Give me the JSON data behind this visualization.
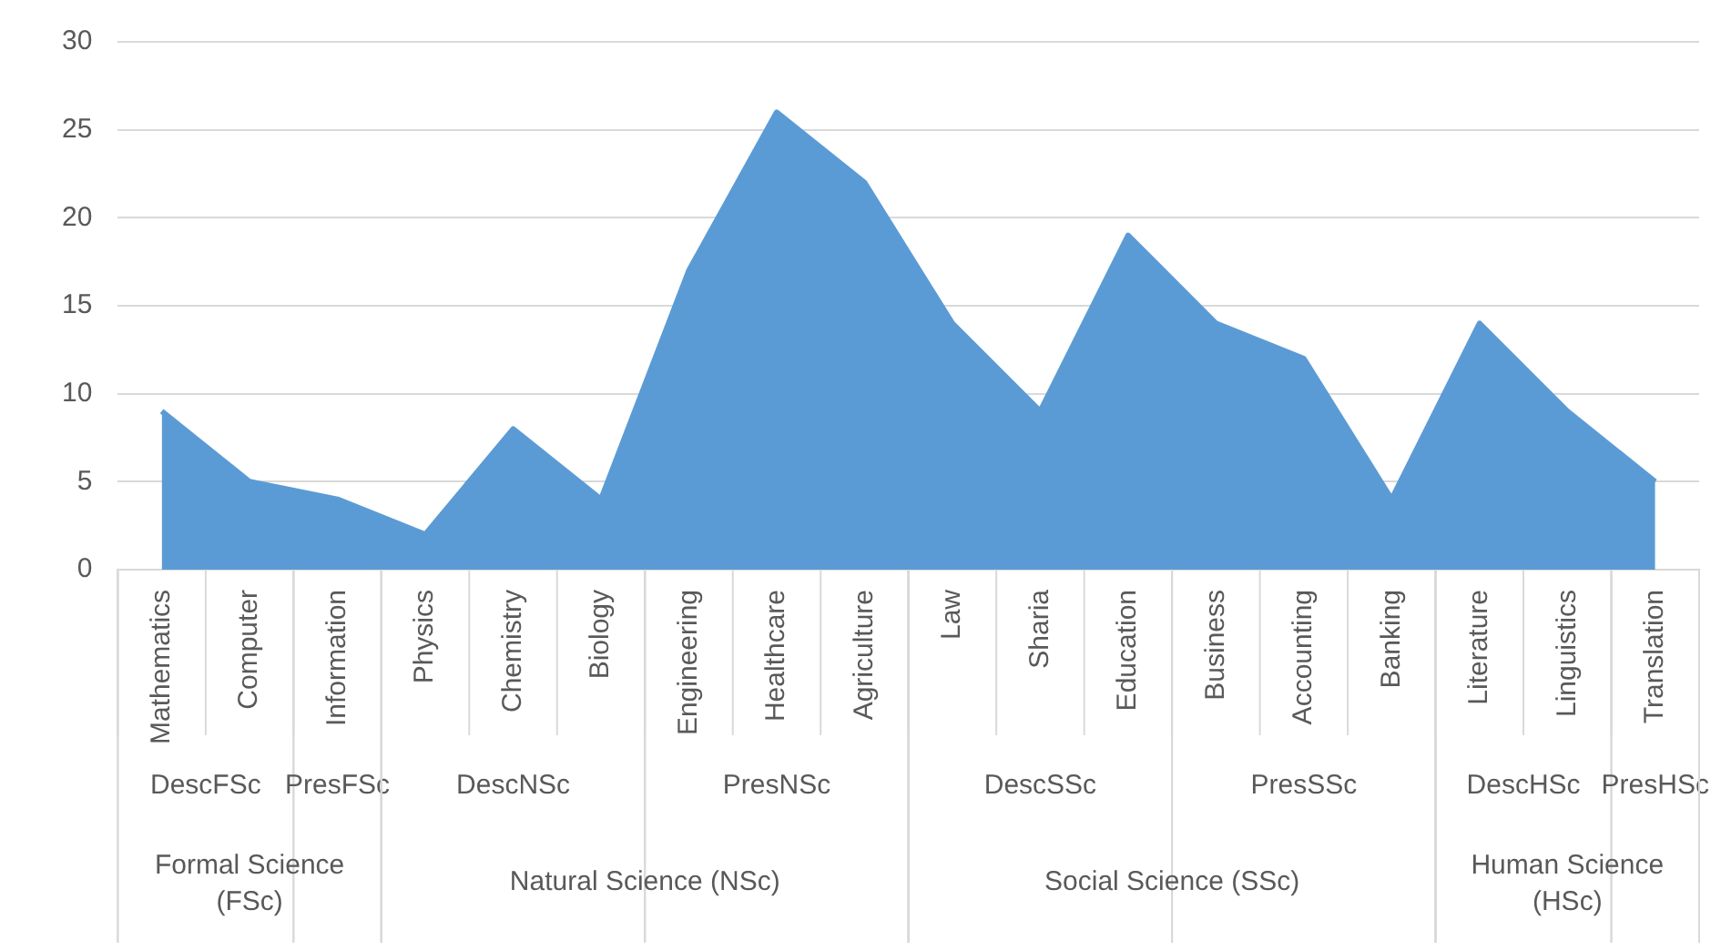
{
  "chart_data": {
    "type": "area",
    "categories": [
      "Mathematics",
      "Computer",
      "Information",
      "Physics",
      "Chemistry",
      "Biology",
      "Engineering",
      "Healthcare",
      "Agriculture",
      "Law",
      "Sharia",
      "Education",
      "Business",
      "Accounting",
      "Banking",
      "Literature",
      "Linguistics",
      "Translation"
    ],
    "series": [
      {
        "color": "#5b9bd5",
        "values": [
          9,
          5,
          4,
          2,
          8,
          4,
          17,
          26,
          22,
          14,
          9,
          19,
          14,
          12,
          4,
          14,
          9,
          5
        ]
      }
    ],
    "ylim": [
      0,
      30
    ],
    "yticks": [
      0,
      5,
      10,
      15,
      20,
      25,
      30
    ],
    "grid": "y",
    "legend": false,
    "annotations": [
      "DescFSc",
      "PresFSc",
      "DescNSc",
      "PresNSc",
      "DescSSc",
      "PresSSc",
      "DescHSc",
      "PresHSc",
      "Formal Science (FSc)",
      "Natural Science (NSc)",
      "Social Science (SSc)",
      "Human Science (HSc)"
    ]
  }
}
